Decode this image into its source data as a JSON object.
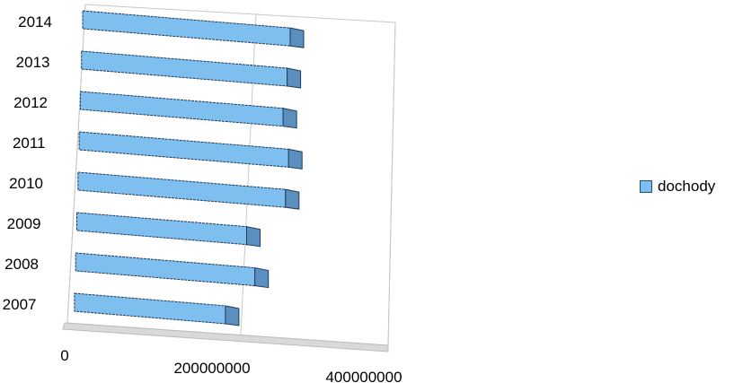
{
  "chart_data": {
    "type": "bar",
    "orientation": "horizontal",
    "style": "3d",
    "categories": [
      "2007",
      "2008",
      "2009",
      "2010",
      "2011",
      "2012",
      "2013",
      "2014"
    ],
    "series": [
      {
        "name": "dochody",
        "values": [
          160000000,
          190000000,
          180000000,
          220000000,
          222000000,
          215000000,
          218000000,
          220000000
        ]
      }
    ],
    "xticks": [
      "0",
      "200000000",
      "400000000"
    ],
    "xlim": [
      0,
      400000000
    ],
    "grid": true,
    "legend_position": "right",
    "colors": {
      "bar_face": "#7fbfef",
      "bar_side": "#5b8fbf",
      "bar_edge": "#1f3a5a",
      "grid": "#bfbfbf"
    }
  }
}
